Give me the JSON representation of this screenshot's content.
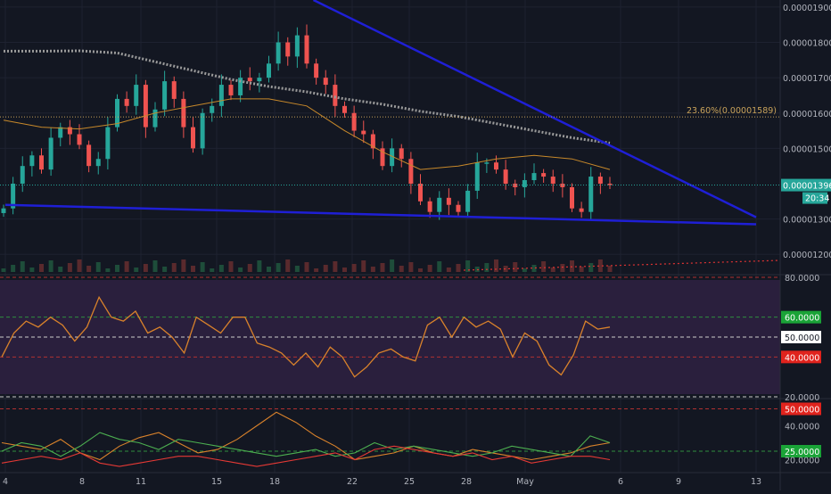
{
  "colors": {
    "background": "#131722",
    "grid": "#1e2230",
    "up": "#26a69a",
    "down": "#ef5350",
    "trendline": "#1f1fd6",
    "ma_gray": "#9a9a9a",
    "ma_orange": "#c8892a",
    "ma_green": "#3f8f3f",
    "rsi_line": "#d9822b",
    "rsi_band": "#2a1f3d",
    "fib": "#c8a25a",
    "axis_text": "#b2b5be",
    "badge_green": "#1aa337",
    "badge_red": "#e0231d",
    "badge_white": "#ffffff"
  },
  "chart_data": [
    {
      "type": "candlestick",
      "panel": "price",
      "x_ticks": [
        "4",
        "8",
        "11",
        "15",
        "18",
        "22",
        "25",
        "28",
        "May",
        "6",
        "9",
        "13"
      ],
      "y_ticks": [
        "0.00001900",
        "0.00001800",
        "0.00001700",
        "0.00001600",
        "0.00001500",
        "0.00001300",
        "0.00001200"
      ],
      "ylim": [
        1.15e-05,
        1.92e-05
      ],
      "last_price_label": "0.00001396",
      "countdown_label": "20:34",
      "fib_label": "23.60%(0.00001589)",
      "fib_value": 1.589e-05,
      "last_price": 1.396e-05,
      "closes": [
        1.33e-05,
        1.4e-05,
        1.45e-05,
        1.48e-05,
        1.44e-05,
        1.53e-05,
        1.56e-05,
        1.54e-05,
        1.51e-05,
        1.45e-05,
        1.47e-05,
        1.56e-05,
        1.64e-05,
        1.62e-05,
        1.68e-05,
        1.56e-05,
        1.61e-05,
        1.69e-05,
        1.64e-05,
        1.56e-05,
        1.5e-05,
        1.6e-05,
        1.62e-05,
        1.68e-05,
        1.65e-05,
        1.7e-05,
        1.69e-05,
        1.7e-05,
        1.74e-05,
        1.8e-05,
        1.76e-05,
        1.82e-05,
        1.74e-05,
        1.7e-05,
        1.68e-05,
        1.62e-05,
        1.6e-05,
        1.55e-05,
        1.54e-05,
        1.5e-05,
        1.45e-05,
        1.5e-05,
        1.47e-05,
        1.4e-05,
        1.35e-05,
        1.32e-05,
        1.36e-05,
        1.34e-05,
        1.32e-05,
        1.38e-05,
        1.46e-05,
        1.46e-05,
        1.44e-05,
        1.4e-05,
        1.39e-05,
        1.41e-05,
        1.43e-05,
        1.42e-05,
        1.4e-05,
        1.39e-05,
        1.33e-05,
        1.32e-05,
        1.42e-05,
        1.4e-05,
        1.396e-05
      ],
      "volume_ma_label": "",
      "trendlines": [
        {
          "from": [
            0,
            1.34e-05
          ],
          "to": [
            13.0,
            1.285e-05
          ]
        },
        {
          "from": [
            4.5,
            1.92e-05
          ],
          "to": [
            12.9,
            1.305e-05
          ]
        }
      ],
      "moving_averages": [
        {
          "color": "gray",
          "values": [
            1.775e-05,
            1.775e-05,
            1.776e-05,
            1.77e-05,
            1.745e-05,
            1.72e-05,
            1.695e-05,
            1.675e-05,
            1.66e-05,
            1.64e-05,
            1.625e-05,
            1.605e-05,
            1.59e-05,
            1.57e-05,
            1.55e-05,
            1.53e-05,
            1.515e-05
          ]
        },
        {
          "color": "orange",
          "values": [
            1.58e-05,
            1.56e-05,
            1.555e-05,
            1.57e-05,
            1.6e-05,
            1.62e-05,
            1.64e-05,
            1.64e-05,
            1.62e-05,
            1.55e-05,
            1.49e-05,
            1.44e-05,
            1.45e-05,
            1.47e-05,
            1.48e-05,
            1.47e-05,
            1.44e-05
          ]
        }
      ]
    },
    {
      "type": "line",
      "panel": "rsi",
      "y_ticks": [
        "80.0000",
        "60.0000",
        "50.0000",
        "40.0000",
        "20.0000"
      ],
      "ylim": [
        20,
        80
      ],
      "badges": [
        "60.0000",
        "50.0000",
        "40.0000"
      ],
      "values": [
        40,
        52,
        58,
        55,
        60,
        56,
        48,
        55,
        70,
        60,
        58,
        63,
        52,
        55,
        50,
        42,
        60,
        56,
        52,
        60,
        60,
        47,
        45,
        42,
        36,
        42,
        35,
        45,
        40,
        30,
        35,
        42,
        44,
        40,
        38,
        56,
        60,
        50,
        60,
        55,
        58,
        54,
        40,
        52,
        48,
        36,
        31,
        41,
        58,
        54,
        55
      ]
    },
    {
      "type": "line",
      "panel": "dmi",
      "y_ticks": [
        "50.0000",
        "40.0000",
        "25.0000",
        "20.0000"
      ],
      "ylim": [
        15,
        55
      ],
      "badges": [
        "50.0000",
        "25.0000"
      ],
      "series": [
        {
          "color": "orange",
          "values": [
            30,
            28,
            26,
            32,
            24,
            20,
            28,
            33,
            36,
            30,
            24,
            26,
            32,
            40,
            48,
            42,
            34,
            28,
            20,
            22,
            24,
            28,
            24,
            22,
            26,
            24,
            22,
            20,
            22,
            24,
            28,
            30
          ]
        },
        {
          "color": "green",
          "values": [
            25,
            30,
            28,
            22,
            28,
            36,
            32,
            30,
            26,
            32,
            30,
            28,
            26,
            24,
            22,
            24,
            26,
            22,
            24,
            30,
            26,
            28,
            26,
            24,
            22,
            24,
            28,
            26,
            24,
            22,
            34,
            30
          ]
        },
        {
          "color": "red",
          "values": [
            18,
            20,
            22,
            20,
            24,
            18,
            16,
            18,
            20,
            22,
            22,
            20,
            18,
            16,
            18,
            20,
            22,
            24,
            20,
            26,
            28,
            26,
            24,
            22,
            24,
            20,
            22,
            18,
            20,
            22,
            22,
            20
          ]
        }
      ]
    }
  ]
}
